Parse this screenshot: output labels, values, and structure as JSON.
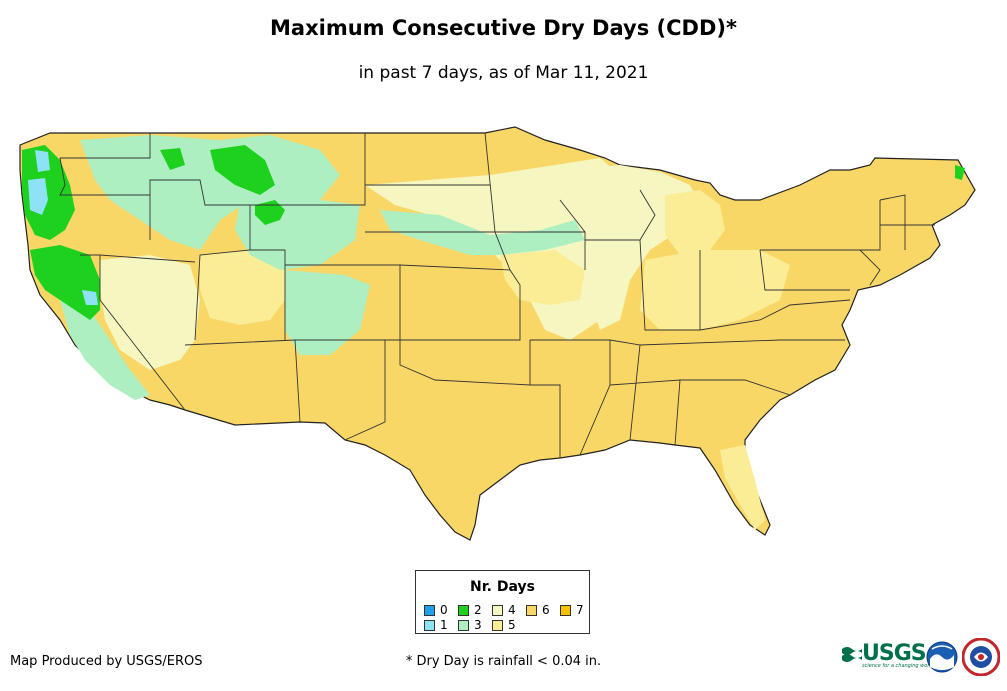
{
  "header": {
    "title": "Maximum Consecutive Dry Days (CDD)*",
    "subtitle": "in past 7 days, as of Mar 11, 2021"
  },
  "legend": {
    "title": "Nr. Days",
    "items": [
      {
        "label": "0",
        "color": "#1fa0e8"
      },
      {
        "label": "1",
        "color": "#8de3f5"
      },
      {
        "label": "2",
        "color": "#1ed11e"
      },
      {
        "label": "3",
        "color": "#aeefc2"
      },
      {
        "label": "4",
        "color": "#f6f7c0"
      },
      {
        "label": "5",
        "color": "#fbed95"
      },
      {
        "label": "6",
        "color": "#f8d766"
      },
      {
        "label": "7",
        "color": "#f7c200"
      }
    ]
  },
  "footer": {
    "credit": "Map Produced by USGS/EROS",
    "footnote": "* Dry Day is rainfall < 0.04 in."
  },
  "logos": {
    "usgs": "USGS",
    "usgs_tagline": "science for a changing world",
    "noaa": "noaa-logo",
    "nws": "national-weather-service-logo"
  },
  "map": {
    "colors": {
      "base": "#f8d766",
      "light_yellow": "#fbed95",
      "pale": "#f6f7c0",
      "mint": "#aeefc2",
      "green": "#1ed11e",
      "cyan": "#8de3f5",
      "border": "#333333"
    }
  }
}
